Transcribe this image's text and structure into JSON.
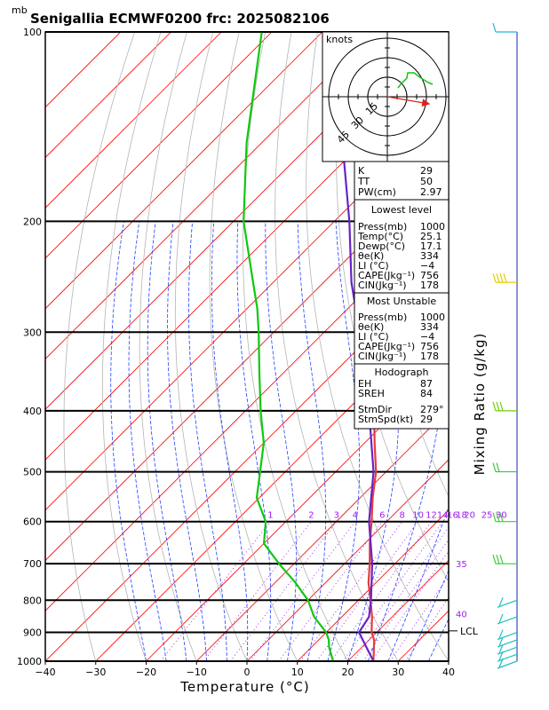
{
  "title": "Senigallia  ECMWF0200  frc: 2025082106",
  "pressure_unit": "mb",
  "colors": {
    "temperature": "#e63c3c",
    "dewpoint": "#10c810",
    "parcel": "#6a22c8",
    "isotherm": "#ff0000",
    "dry_adiabat": "#b4b4b4",
    "moist_adiabat": "#2040ff",
    "mixing_ratio": "#a020f0",
    "hodograph": "#10c810",
    "storm_motion": "#e02020"
  },
  "hodograph": {
    "unit_label": "knots",
    "rings": [
      "15",
      "30",
      "45"
    ]
  },
  "indices": {
    "general": [
      {
        "label": "K",
        "value": "29"
      },
      {
        "label": "TT",
        "value": "50"
      },
      {
        "label": "PW(cm)",
        "value": "2.97"
      }
    ],
    "lowest_level": {
      "title": "Lowest level",
      "rows": [
        {
          "label": "Press(mb)",
          "value": "1000"
        },
        {
          "label": "Temp(°C)",
          "value": "25.1"
        },
        {
          "label": "Dewp(°C)",
          "value": "17.1"
        },
        {
          "label": "θe(K)",
          "value": "334"
        },
        {
          "label": "LI (°C)",
          "value": "−4"
        },
        {
          "label": "CAPE(Jkg⁻¹)",
          "value": "756"
        },
        {
          "label": "CIN(Jkg⁻¹)",
          "value": "178"
        }
      ]
    },
    "most_unstable": {
      "title": "Most Unstable",
      "rows": [
        {
          "label": "Press(mb)",
          "value": "1000"
        },
        {
          "label": "θe(K)",
          "value": "334"
        },
        {
          "label": "LI (°C)",
          "value": "−4"
        },
        {
          "label": "CAPE(Jkg⁻¹)",
          "value": "756"
        },
        {
          "label": "CIN(Jkg⁻¹)",
          "value": "178"
        }
      ]
    },
    "hodograph": {
      "title": "Hodograph",
      "rows": [
        {
          "label": "EH",
          "value": "87"
        },
        {
          "label": "SREH",
          "value": "84"
        },
        {
          "label": "StmDir",
          "value": "279°"
        },
        {
          "label": "StmSpd(kt)",
          "value": "29"
        }
      ]
    }
  },
  "chart_data": {
    "type": "line",
    "diagram": "skew-T log-P",
    "xlabel": "Temperature (°C)",
    "ylabel_right": "Mixing Ratio (g/kg)",
    "xlim": [
      -40,
      40
    ],
    "ylim": [
      1000,
      100
    ],
    "x_ticks": [
      -40,
      -30,
      -20,
      -10,
      0,
      10,
      20,
      30,
      40
    ],
    "pressure_levels": [
      100,
      200,
      300,
      400,
      500,
      600,
      700,
      800,
      900,
      1000
    ],
    "y_tick_labels": [
      "100",
      "200",
      "300",
      "400",
      "500",
      "600",
      "700",
      "800",
      "900",
      "1000"
    ],
    "x_tick_labels": [
      "−40",
      "−30",
      "−20",
      "−10",
      "0",
      "10",
      "20",
      "30",
      "40"
    ],
    "mixing_ratio_lines": [
      1,
      2,
      3,
      4,
      6,
      8,
      10,
      12,
      14,
      16,
      18,
      20,
      25,
      30
    ],
    "mixing_ratio_labels": [
      "1",
      "2",
      "3",
      "4",
      "6",
      "8",
      "10",
      "12",
      "14",
      "16",
      "18",
      "20",
      "25",
      "30"
    ],
    "isotherm_labels": [
      {
        "label": "35",
        "p": 700
      },
      {
        "label": "40",
        "p": 840
      }
    ],
    "lcl": {
      "label": "LCL",
      "p": 895
    },
    "series": [
      {
        "p": [
          1000,
          925,
          900,
          850,
          800,
          750,
          700,
          650,
          600,
          550,
          500,
          450,
          400,
          350,
          300,
          275,
          250,
          225,
          200,
          150,
          100
        ],
        "values": [
          25.1,
          21.0,
          19.0,
          16.0,
          12.4,
          8.5,
          5.0,
          1.0,
          -3.0,
          -7.5,
          -12.0,
          -18.0,
          -24.5,
          -32.0,
          -40.5,
          -45.5,
          -51.5,
          -55.0,
          -56.0,
          -60.0,
          -62.0
        ]
      },
      {
        "p": [
          1000,
          950,
          925,
          900,
          850,
          800,
          750,
          700,
          650,
          600,
          550,
          500,
          450,
          400,
          350,
          300,
          275,
          250,
          200,
          150,
          100
        ],
        "values": [
          17.1,
          13.5,
          12.0,
          10.0,
          4.5,
          0.0,
          -6.0,
          -13.0,
          -20.0,
          -24.0,
          -30.5,
          -35.0,
          -40.0,
          -47.0,
          -54.5,
          -63.0,
          -68.0,
          -74.0,
          -88.0,
          -103.0,
          -122.0
        ]
      },
      {
        "p": [
          1000,
          900,
          850,
          800,
          700,
          600,
          500,
          400,
          300,
          250,
          200,
          150,
          120
        ],
        "values": [
          25.1,
          16.5,
          15.4,
          12.5,
          5.5,
          -3.5,
          -12.5,
          -25.5,
          -43.0,
          -54.5,
          -67.0,
          -84.0,
          -97.0
        ]
      }
    ]
  }
}
